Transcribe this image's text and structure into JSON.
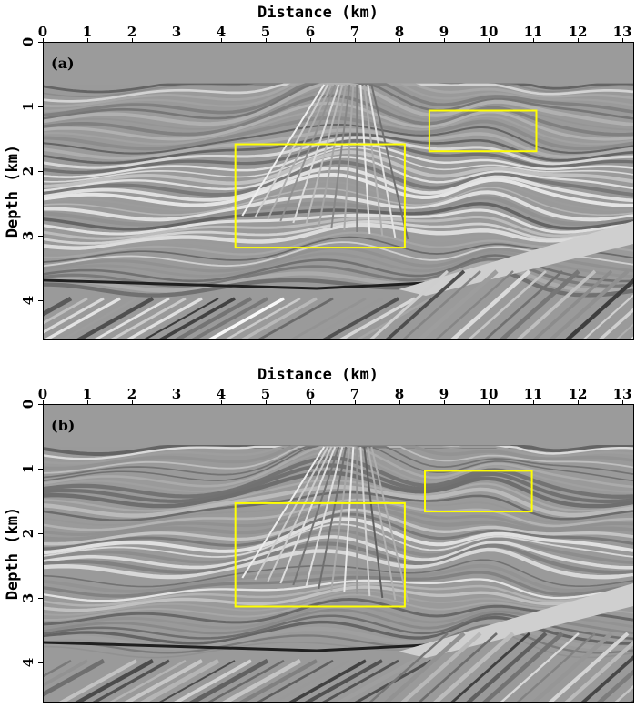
{
  "panels": [
    {
      "label": "(a)",
      "x_axis_title": "Distance (km)",
      "y_axis_title": "Depth (km)",
      "x_ticks": [
        "0",
        "1",
        "2",
        "3",
        "4",
        "5",
        "6",
        "7",
        "8",
        "9",
        "10",
        "11",
        "12",
        "13"
      ],
      "y_ticks": [
        "0",
        "1",
        "2",
        "3",
        "4"
      ],
      "highlight_color": "#ffff00"
    },
    {
      "label": "(b)",
      "x_axis_title": "Distance (km)",
      "y_axis_title": "Depth (km)",
      "x_ticks": [
        "0",
        "1",
        "2",
        "3",
        "4",
        "5",
        "6",
        "7",
        "8",
        "9",
        "10",
        "11",
        "12",
        "13"
      ],
      "y_ticks": [
        "0",
        "1",
        "2",
        "3",
        "4"
      ],
      "highlight_color": "#ffff00"
    }
  ]
}
